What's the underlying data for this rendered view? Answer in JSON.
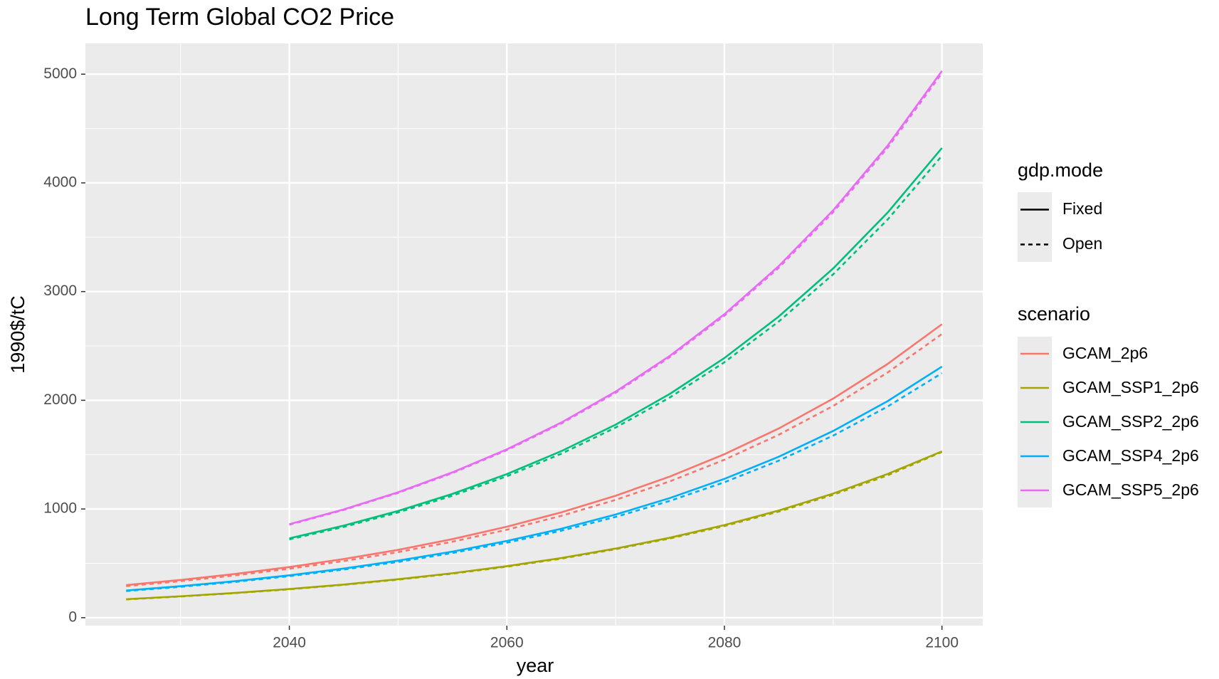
{
  "chart_data": {
    "type": "line",
    "title": "Long Term Global CO2 Price",
    "x_label": "year",
    "y_label": "1990$/tC",
    "x": [
      2025,
      2030,
      2035,
      2040,
      2045,
      2050,
      2055,
      2060,
      2065,
      2070,
      2075,
      2080,
      2085,
      2090,
      2095,
      2100
    ],
    "xlim": [
      2021.25,
      2103.75
    ],
    "xticks": [
      2040,
      2060,
      2080,
      2100
    ],
    "x_minor_ticks": [
      2030,
      2050,
      2070,
      2090
    ],
    "ylim": [
      -73,
      5283
    ],
    "yticks": [
      0,
      1000,
      2000,
      3000,
      4000,
      5000
    ],
    "y_minor_ticks": [
      500,
      1500,
      2500,
      3500,
      4500
    ],
    "grid": true,
    "legend_gdp_mode": {
      "title": "gdp.mode",
      "entries": [
        {
          "name": "Fixed",
          "dash": "none"
        },
        {
          "name": "Open",
          "dash": "6,5"
        }
      ]
    },
    "legend_scenario": {
      "title": "scenario",
      "entries": [
        {
          "name": "GCAM_2p6",
          "color": "#F8766D"
        },
        {
          "name": "GCAM_SSP1_2p6",
          "color": "#A3A500"
        },
        {
          "name": "GCAM_SSP2_2p6",
          "color": "#00BF7D"
        },
        {
          "name": "GCAM_SSP4_2p6",
          "color": "#00B0F6"
        },
        {
          "name": "GCAM_SSP5_2p6",
          "color": "#E76BF3"
        }
      ]
    },
    "series": [
      {
        "scenario": 0,
        "gdp_mode": 0,
        "values": [
          300,
          347,
          402,
          466,
          540,
          624,
          723,
          837,
          969,
          1122,
          1299,
          1504,
          1741,
          2016,
          2334,
          2700
        ]
      },
      {
        "scenario": 0,
        "gdp_mode": 1,
        "values": [
          290,
          336,
          389,
          450,
          521,
          603,
          699,
          809,
          937,
          1084,
          1255,
          1453,
          1683,
          1948,
          2255,
          2610
        ]
      },
      {
        "scenario": 1,
        "gdp_mode": 0,
        "values": [
          170,
          197,
          228,
          264,
          305,
          354,
          409,
          474,
          549,
          636,
          736,
          852,
          986,
          1142,
          1322,
          1530
        ]
      },
      {
        "scenario": 1,
        "gdp_mode": 1,
        "values": [
          168,
          195,
          226,
          261,
          302,
          350,
          405,
          469,
          543,
          630,
          729,
          843,
          976,
          1131,
          1309,
          1525
        ]
      },
      {
        "scenario": 2,
        "gdp_mode": 0,
        "values": [
          null,
          null,
          null,
          730,
          847,
          982,
          1139,
          1321,
          1532,
          1776,
          2060,
          2389,
          2771,
          3213,
          3726,
          4321
        ]
      },
      {
        "scenario": 2,
        "gdp_mode": 1,
        "values": [
          null,
          null,
          null,
          720,
          835,
          968,
          1122,
          1301,
          1508,
          1749,
          2027,
          2350,
          2725,
          3159,
          3662,
          4250
        ]
      },
      {
        "scenario": 3,
        "gdp_mode": 0,
        "values": [
          250,
          290,
          336,
          390,
          452,
          525,
          608,
          706,
          818,
          949,
          1101,
          1277,
          1481,
          1718,
          1992,
          2310
        ]
      },
      {
        "scenario": 3,
        "gdp_mode": 1,
        "values": [
          245,
          284,
          329,
          382,
          443,
          513,
          595,
          690,
          800,
          927,
          1075,
          1246,
          1445,
          1675,
          1942,
          2250
        ]
      },
      {
        "scenario": 4,
        "gdp_mode": 0,
        "values": [
          null,
          null,
          null,
          860,
          996,
          1154,
          1337,
          1549,
          1795,
          2080,
          2410,
          2792,
          3235,
          3748,
          4342,
          5030
        ]
      },
      {
        "scenario": 4,
        "gdp_mode": 1,
        "values": [
          null,
          null,
          null,
          855,
          991,
          1148,
          1330,
          1541,
          1786,
          2069,
          2398,
          2778,
          3219,
          3730,
          4322,
          5010
        ]
      }
    ]
  }
}
